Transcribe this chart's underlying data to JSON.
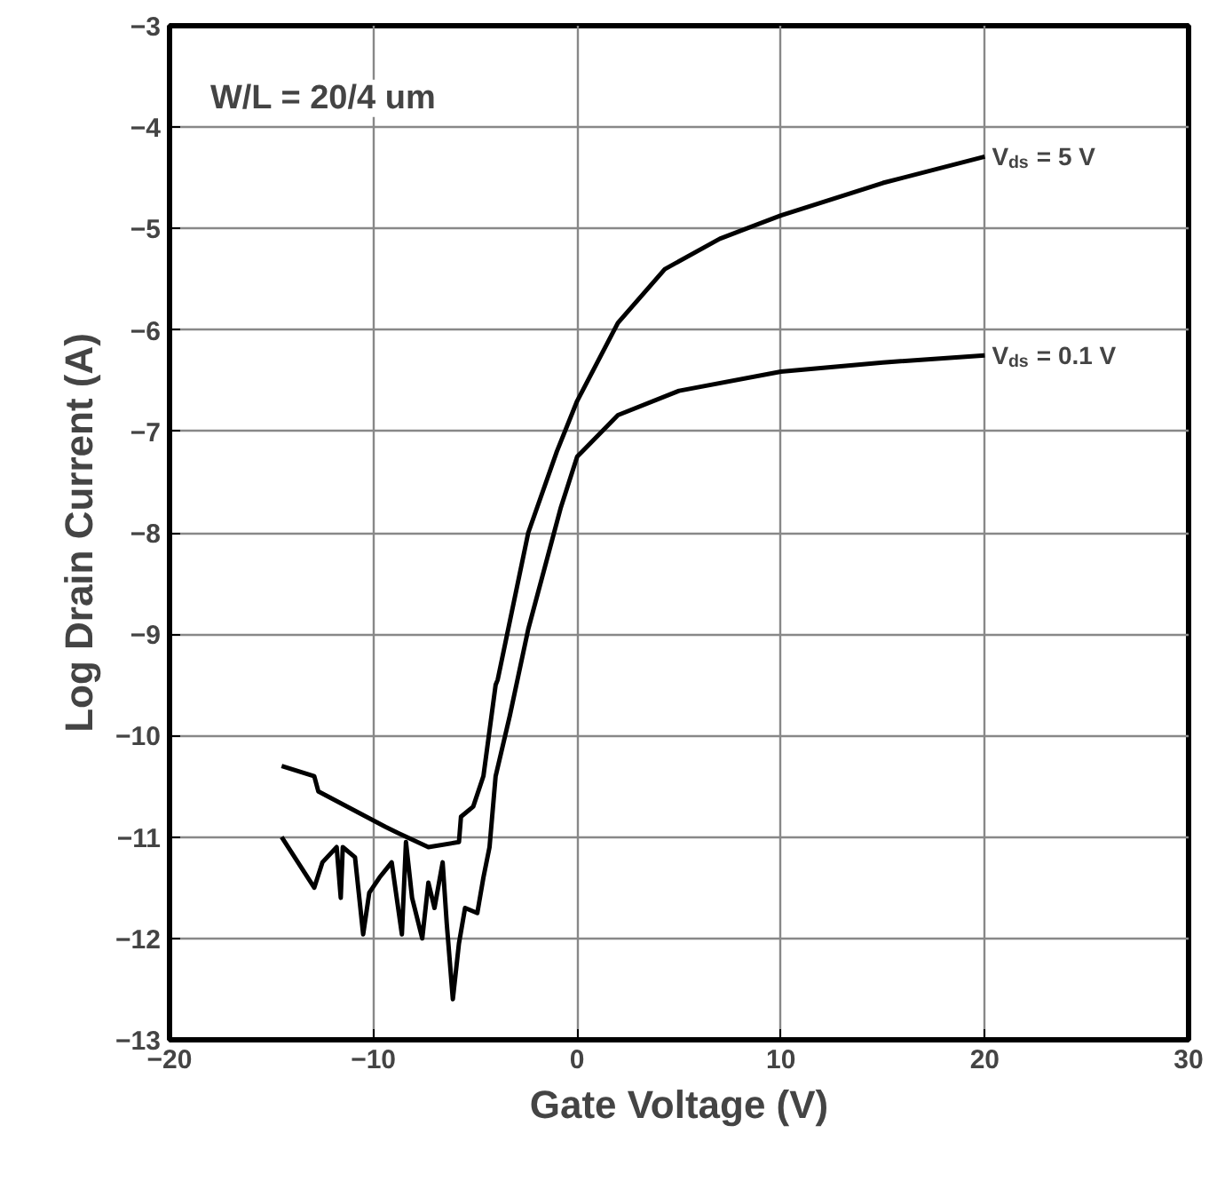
{
  "chart_data": {
    "type": "line",
    "xlabel": "Gate Voltage (V)",
    "ylabel": "Log Drain Current (A)",
    "annotations": [
      "W/L = 20/4 um"
    ],
    "series": [
      {
        "name": "V$_{ds}$ = 5 V",
        "color": "#000000",
        "x": [
          -14.5,
          -12.9,
          -12.7,
          -9.4,
          -8.8,
          -7.3,
          -5.8,
          -5.7,
          -5.1,
          -4.6,
          -4.0,
          -3.9,
          -2.4,
          -1.0,
          0,
          2,
          4.3,
          7,
          10,
          15,
          20
        ],
        "values": [
          -10.3,
          -10.4,
          -10.55,
          -10.9,
          -10.96,
          -11.1,
          -11.05,
          -10.8,
          -10.7,
          -10.4,
          -9.5,
          -9.45,
          -8.0,
          -7.2,
          -6.7,
          -5.93,
          -5.4,
          -5.1,
          -4.87,
          -4.55,
          -4.29
        ]
      },
      {
        "name": "V$_{ds}$ = 0.1 V",
        "color": "#000000",
        "x": [
          -14.5,
          -12.9,
          -12.5,
          -11.8,
          -11.6,
          -11.5,
          -10.9,
          -10.5,
          -10.2,
          -9.7,
          -9.1,
          -8.6,
          -8.4,
          -8.1,
          -7.6,
          -7.3,
          -7.0,
          -6.6,
          -6.4,
          -6.1,
          -5.8,
          -5.5,
          -4.9,
          -4.6,
          -4.3,
          -4.0,
          -3.3,
          -2.4,
          -0.8,
          0,
          2,
          5,
          10,
          15,
          20
        ],
        "values": [
          -11.0,
          -11.5,
          -11.25,
          -11.1,
          -11.6,
          -11.1,
          -11.2,
          -11.96,
          -11.55,
          -11.4,
          -11.25,
          -11.96,
          -11.05,
          -11.6,
          -12.0,
          -11.45,
          -11.7,
          -11.25,
          -11.85,
          -12.6,
          -12.05,
          -11.7,
          -11.75,
          -11.4,
          -11.1,
          -10.4,
          -9.8,
          -8.95,
          -7.75,
          -7.25,
          -6.84,
          -6.6,
          -6.41,
          -6.32,
          -6.25
        ]
      }
    ],
    "xlim": [
      -20,
      30
    ],
    "ylim": [
      -13,
      -3
    ],
    "xticks": [
      -20,
      -10,
      0,
      10,
      20,
      30
    ],
    "yticks": [
      -13,
      -12,
      -11,
      -10,
      -9,
      -8,
      -7,
      -6,
      -5,
      -4,
      -3
    ],
    "grid": true,
    "marker": "none",
    "line_style": "solid"
  }
}
